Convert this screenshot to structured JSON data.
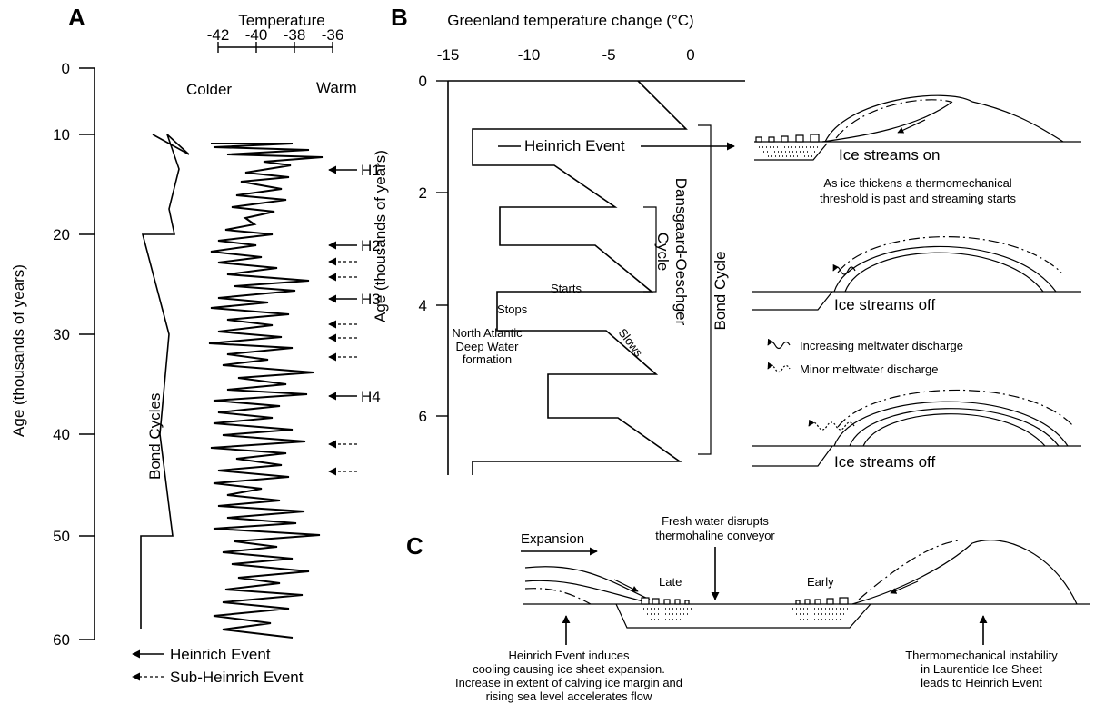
{
  "panels": {
    "a": "A",
    "b": "B",
    "c": "C"
  },
  "panelA": {
    "temp_title": "Temperature",
    "temp_ticks": [
      "-42",
      "-40",
      "-38",
      "-36"
    ],
    "colder": "Colder",
    "warm": "Warm",
    "yaxis_title": "Age (thousands of years)",
    "y_ticks": [
      "0",
      "10",
      "20",
      "30",
      "40",
      "50",
      "60"
    ],
    "bond_label": "Bond Cycles",
    "heinrich": [
      "H1",
      "H2",
      "H3",
      "H4"
    ],
    "legend_heinrich": "Heinrich Event",
    "legend_sub": "Sub-Heinrich Event"
  },
  "panelB": {
    "xaxis_title": "Greenland temperature change (°C)",
    "x_ticks": [
      "-15",
      "-10",
      "-5",
      "0"
    ],
    "yaxis_title": "Age (thousands of years)",
    "y_ticks": [
      "0",
      "2",
      "4",
      "6"
    ],
    "heinrich_event": "Heinrich Event",
    "starts": "Starts",
    "stops": "Stops",
    "slows": "Slows",
    "nadw": [
      "North Atlantic",
      "Deep Water",
      "formation"
    ],
    "do_cycle": [
      "Dansgaard-Oeschger",
      "Cycle"
    ],
    "bond_cycle": "Bond Cycle",
    "ice_on": "Ice streams on",
    "threshold": [
      "As ice thickens a thermomechanical",
      "threshold is past and streaming starts"
    ],
    "ice_off_1": "Ice streams off",
    "ice_off_2": "Ice streams off",
    "legend_increasing": "Increasing meltwater discharge",
    "legend_minor": "Minor meltwater discharge"
  },
  "panelC": {
    "expansion": "Expansion",
    "fresh_water": [
      "Fresh water disrupts",
      "thermohaline conveyor"
    ],
    "late": "Late",
    "early": "Early",
    "left_note": [
      "Heinrich Event induces",
      "cooling causing ice sheet expansion.",
      "Increase in extent of calving ice margin and",
      "rising sea level accelerates flow"
    ],
    "right_note": [
      "Thermomechanical instability",
      "in Laurentide Ice Sheet",
      "leads to Heinrich Event"
    ]
  },
  "chart_data": [
    {
      "type": "line",
      "name": "Panel A temperature record",
      "xlabel": "Temperature",
      "ylabel": "Age (thousands of years)",
      "xlim": [
        -42,
        -36
      ],
      "ylim": [
        0,
        60
      ],
      "heinrich_events_ka": [
        {
          "label": "H1",
          "age": 14
        },
        {
          "label": "H2",
          "age": 21
        },
        {
          "label": "H3",
          "age": 27
        },
        {
          "label": "H4",
          "age": 36
        }
      ],
      "sub_heinrich_events_ka": [
        22.7,
        24.3,
        29,
        30.5,
        32.5,
        41,
        43.7
      ],
      "bond_cycle_sawtooth": {
        "x": [
          -36.2,
          -36,
          -35.3,
          -35.5,
          -35.4,
          -35,
          -35.8,
          -37.4,
          -37.1,
          -36.2
        ],
        "age": [
          10,
          10,
          12,
          14,
          17,
          20,
          20,
          35,
          49,
          57.5
        ]
      }
    },
    {
      "type": "line",
      "name": "Panel B Greenland temperature change",
      "xlabel": "Greenland temperature change (°C)",
      "ylabel": "Age (thousands of years)",
      "xlim": [
        -15,
        0
      ],
      "ylim": [
        0,
        7
      ],
      "points": [
        {
          "x": -3.2,
          "age": 0
        },
        {
          "x": 0,
          "age": 0.85
        },
        {
          "x": -14,
          "age": 0.85
        },
        {
          "x": -14,
          "age": 1.5
        },
        {
          "x": -9,
          "age": 1.5
        },
        {
          "x": -4.8,
          "age": 2.25
        },
        {
          "x": -12.8,
          "age": 2.25
        },
        {
          "x": -12.8,
          "age": 2.9
        },
        {
          "x": -6.2,
          "age": 2.9
        },
        {
          "x": -2.5,
          "age": 3.75
        },
        {
          "x": -10.5,
          "age": 3.75
        },
        {
          "x": -10.5,
          "age": 4.45
        },
        {
          "x": -5,
          "age": 4.45
        },
        {
          "x": -2.7,
          "age": 5.25
        },
        {
          "x": -9.3,
          "age": 5.25
        },
        {
          "x": -9.3,
          "age": 6
        },
        {
          "x": -4.5,
          "age": 6
        },
        {
          "x": -0.7,
          "age": 6.8
        },
        {
          "x": -14,
          "age": 6.8
        },
        {
          "x": -14,
          "age": 7
        }
      ]
    }
  ]
}
